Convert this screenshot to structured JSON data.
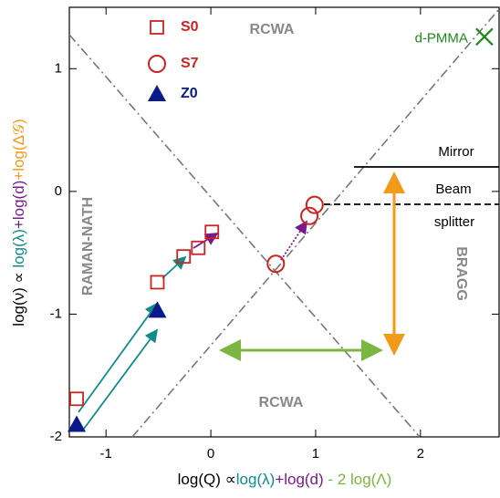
{
  "chart_data": {
    "type": "scatter",
    "xlim": [
      -1.35,
      2.75
    ],
    "ylim": [
      -2,
      1.5
    ],
    "xticks": [
      -1,
      0,
      1,
      2
    ],
    "yticks": [
      -2,
      -1,
      0,
      1
    ],
    "series": [
      {
        "name": "S0",
        "color": "#cc2222",
        "marker": "square",
        "x": [
          -1.28,
          -0.51,
          -0.26,
          -0.12,
          0.01
        ],
        "values": [
          -1.69,
          -0.74,
          -0.53,
          -0.46,
          -0.33
        ]
      },
      {
        "name": "S7",
        "color": "#cc2222",
        "marker": "circle",
        "x": [
          0.62,
          0.94,
          0.99
        ],
        "values": [
          -0.59,
          -0.2,
          -0.11
        ]
      },
      {
        "name": "Z0",
        "color": "#0a1a8a",
        "marker": "triangle",
        "x": [
          -1.28,
          -0.51
        ],
        "values": [
          -1.9,
          -0.97
        ]
      },
      {
        "name": "d-PMMA",
        "color": "#1a8a1a",
        "marker": "x",
        "x": [
          2.61
        ],
        "values": [
          1.26
        ]
      }
    ],
    "annotations": [
      "RCWA",
      "RCWA",
      "RAMAN-NATH",
      "BRAGG",
      "Mirror",
      "Beam",
      "splitter"
    ],
    "x_label_parts": [
      {
        "text": "log(Q) ∝",
        "color": "#000000"
      },
      {
        "text": "log(λ)",
        "color": "#118a8a"
      },
      {
        "text": "+log(d)",
        "color": "#7a1a8a"
      },
      {
        "text": " - 2 log(Λ)",
        "color": "#7ab640"
      }
    ],
    "y_label_parts": [
      {
        "text": "log(ν) ∝ ",
        "color": "#000000"
      },
      {
        "text": "log(λ)",
        "color": "#118a8a"
      },
      {
        "text": "+log(d)",
        "color": "#7a1a8a"
      },
      {
        "text": "+log(Δ𝒢)",
        "color": "#f39a1a"
      }
    ]
  }
}
